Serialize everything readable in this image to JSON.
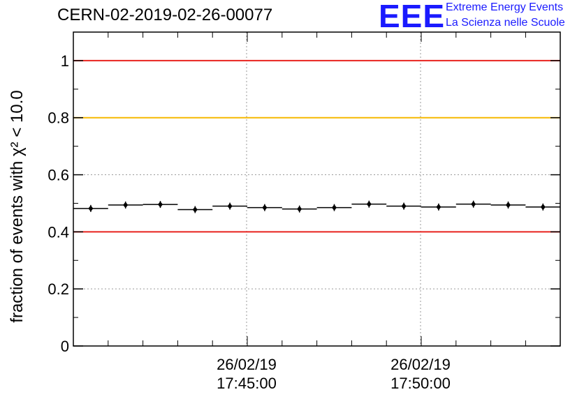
{
  "title": "CERN-02-2019-02-26-00077",
  "logo": {
    "letters": "EEE",
    "line1": "Extreme Energy Events",
    "line2": "La Scienza nelle Scuole"
  },
  "chart_data": {
    "type": "scatter",
    "title": "CERN-02-2019-02-26-00077",
    "ylabel": "fraction of events with χ² < 10.0",
    "xlabel": "",
    "ylim": [
      0,
      1.1
    ],
    "yticks": [
      "0",
      "0.2",
      "0.4",
      "0.6",
      "0.8",
      "1"
    ],
    "xticks": [
      {
        "date": "26/02/19",
        "time": "17:45:00"
      },
      {
        "date": "26/02/19",
        "time": "17:50:00"
      }
    ],
    "grid": true,
    "reference_lines": [
      {
        "y": 1.0,
        "color": "#e8221d"
      },
      {
        "y": 0.8,
        "color": "#f6b800"
      },
      {
        "y": 0.4,
        "color": "#e8221d"
      }
    ],
    "points": [
      0.482,
      0.494,
      0.496,
      0.478,
      0.49,
      0.485,
      0.48,
      0.485,
      0.497,
      0.49,
      0.487,
      0.497,
      0.494,
      0.487
    ],
    "marker_color": "#000000"
  }
}
